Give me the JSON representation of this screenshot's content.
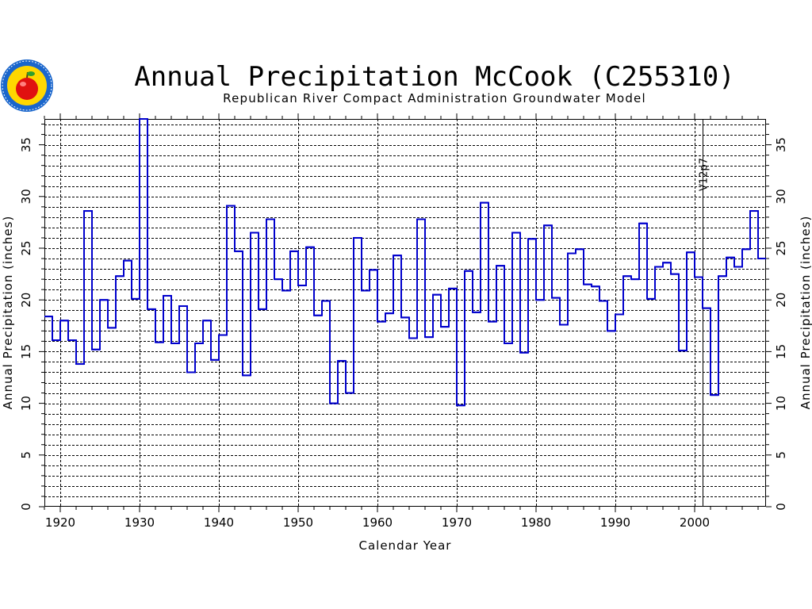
{
  "chart_data": {
    "type": "step-line",
    "title": "Annual Precipitation McCook (C255310)",
    "subtitle": "Republican River Compact Administration Groundwater Model",
    "xlabel": "Calendar Year",
    "ylabel_left": "Annual Precipitation (inches)",
    "ylabel_right": "Annual Precipitation (inches)",
    "xlim": [
      1918,
      2009
    ],
    "ylim": [
      0,
      37.5
    ],
    "x_major_ticks": [
      1920,
      1930,
      1940,
      1950,
      1960,
      1970,
      1980,
      1990,
      2000
    ],
    "x_tick_labels": [
      "1920",
      "1930",
      "1940",
      "1950",
      "1960",
      "1970",
      "1980",
      "1990",
      "2000"
    ],
    "y_major_ticks": [
      0,
      5,
      10,
      15,
      20,
      25,
      30,
      35
    ],
    "y_tick_labels": [
      "0",
      "5",
      "10",
      "15",
      "20",
      "25",
      "30",
      "35"
    ],
    "y_minor_step": 1,
    "grid": "dashed",
    "series_color": "#0000cc",
    "marker": {
      "year": 2001,
      "label": "V12p7"
    },
    "series": [
      {
        "name": "McCook annual precipitation",
        "start_year": 1918,
        "values": [
          18.4,
          16.1,
          18.0,
          16.1,
          13.8,
          28.6,
          15.2,
          20.0,
          17.3,
          22.3,
          23.8,
          20.1,
          37.5,
          19.1,
          15.9,
          20.4,
          15.8,
          19.4,
          13.0,
          15.8,
          18.0,
          14.2,
          16.6,
          29.1,
          24.7,
          12.7,
          26.5,
          19.1,
          27.8,
          22.0,
          20.9,
          24.7,
          21.4,
          25.1,
          18.5,
          19.9,
          10.0,
          14.1,
          11.0,
          26.0,
          20.9,
          22.9,
          17.9,
          18.7,
          24.3,
          18.3,
          16.3,
          27.8,
          16.4,
          20.5,
          17.4,
          21.1,
          9.8,
          22.8,
          18.8,
          29.4,
          17.9,
          23.3,
          15.8,
          26.5,
          14.9,
          25.9,
          20.0,
          27.2,
          20.2,
          17.6,
          24.5,
          24.9,
          21.5,
          21.3,
          19.9,
          17.0,
          18.6,
          22.3,
          22.0,
          27.4,
          20.1,
          23.2,
          23.6,
          22.5,
          15.1,
          24.6,
          22.2,
          19.2,
          10.8,
          22.3,
          24.1,
          23.2,
          24.9,
          28.6,
          24.0
        ]
      }
    ]
  },
  "logo": {
    "icon": "apple-seal-icon",
    "colors": {
      "ring": "#1a66cc",
      "sun": "#ffd700",
      "apple": "#e01010",
      "leaf": "#2e9e2e"
    }
  }
}
